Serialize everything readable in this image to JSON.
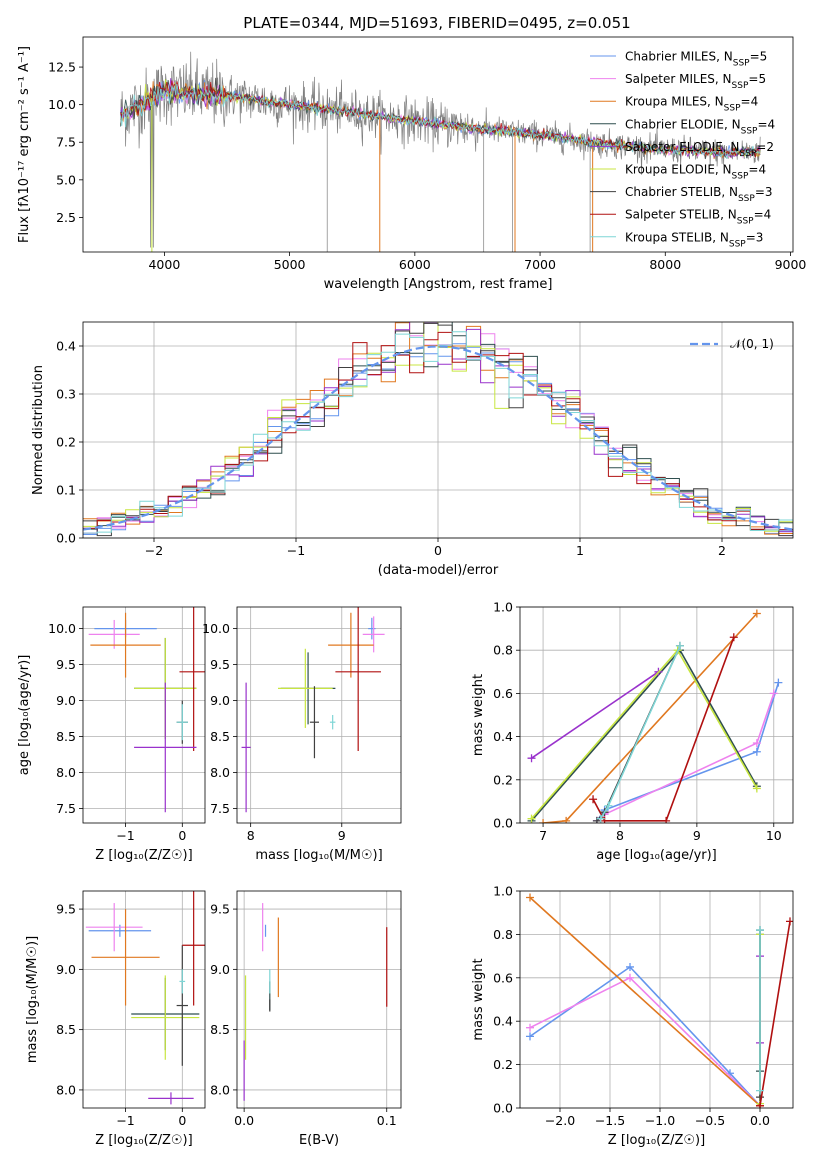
{
  "title": "PLATE=0344, MJD=51693, FIBERID=0495, z=0.051",
  "colors": {
    "Chabrier MILES": "#6495ed",
    "Salpeter MILES": "#ee82ee",
    "Kroupa MILES": "#e07820",
    "Chabrier ELODIE": "#2f4f4f",
    "Salpeter ELODIE": "#9932cc",
    "Kroupa ELODIE": "#c8e640",
    "Chabrier STELIB": "#404040",
    "Salpeter STELIB": "#b01010",
    "Kroupa STELIB": "#7fd6d6",
    "data": "#7f7f7f",
    "gaussian": "#6495ed"
  },
  "chart_data": [
    {
      "id": "spectrum",
      "type": "line",
      "xlabel": "wavelength [Angstrom, rest frame]",
      "ylabel": "Flux [f$_\\lambda$10$^{-17}$ erg cm$^{-2}$ s$^{-1}$ A$^{-1}$]",
      "ylabel_text": "Flux [fλ10⁻¹⁷ erg cm⁻² s⁻¹ A⁻¹]",
      "xlim": [
        3350,
        9020
      ],
      "ylim": [
        0.2,
        14.5
      ],
      "xticks": [
        4000,
        5000,
        6000,
        7000,
        8000,
        9000
      ],
      "xticklabels": [
        "4000",
        "5000",
        "6000",
        "7000",
        "8000",
        "9000"
      ],
      "yticks": [
        2.5,
        5.0,
        7.5,
        10.0,
        12.5
      ],
      "yticklabels": [
        "2.5",
        "5.0",
        "7.5",
        "10.0",
        "12.5"
      ],
      "legend_position": "upper right",
      "legend": [
        {
          "name": "Chabrier MILES",
          "nssp": "5"
        },
        {
          "name": "Salpeter MILES",
          "nssp": "5"
        },
        {
          "name": "Kroupa MILES",
          "nssp": "4"
        },
        {
          "name": "Chabrier ELODIE",
          "nssp": "4"
        },
        {
          "name": "Salpeter ELODIE",
          "nssp": "2"
        },
        {
          "name": "Kroupa ELODIE",
          "nssp": "4"
        },
        {
          "name": "Chabrier STELIB",
          "nssp": "3"
        },
        {
          "name": "Salpeter STELIB",
          "nssp": "4"
        },
        {
          "name": "Kroupa STELIB",
          "nssp": "3"
        }
      ],
      "data_trend": {
        "wavelength": [
          3650,
          4000,
          4500,
          5000,
          5500,
          6000,
          6500,
          7000,
          7500,
          8000,
          8500,
          8750
        ],
        "flux": [
          9.3,
          10.9,
          10.6,
          10.0,
          9.5,
          8.9,
          8.4,
          8.0,
          7.4,
          7.0,
          6.8,
          6.9
        ]
      }
    },
    {
      "id": "residuals",
      "type": "bar",
      "xlabel": "(data-model)/error",
      "ylabel": "Normed distribution",
      "xlim": [
        -2.5,
        2.5
      ],
      "ylim": [
        0,
        0.45
      ],
      "xticks": [
        -2,
        -1,
        0,
        1,
        2
      ],
      "xticklabels": [
        "−2",
        "−1",
        "0",
        "1",
        "2"
      ],
      "yticks": [
        0.0,
        0.1,
        0.2,
        0.3,
        0.4
      ],
      "yticklabels": [
        "0.0",
        "0.1",
        "0.2",
        "0.3",
        "0.4"
      ],
      "legend_label": "𝒩(0, 1)",
      "legend_position": "upper right",
      "bin_width": 0.1
    },
    {
      "id": "age_vs_Z",
      "type": "scatter",
      "xlabel": "Z [log₁₀(Z/Z☉)]",
      "ylabel": "age  [log₁₀(age/yr)]",
      "xlim": [
        -1.75,
        0.4
      ],
      "ylim": [
        7.3,
        10.3
      ],
      "xticks": [
        -1,
        0
      ],
      "xticklabels": [
        "−1",
        "0"
      ],
      "yticks": [
        7.5,
        8.0,
        8.5,
        9.0,
        9.5,
        10.0
      ],
      "yticklabels": [
        "7.5",
        "8.0",
        "8.5",
        "9.0",
        "9.5",
        "10.0"
      ],
      "points": [
        {
          "model": "Chabrier MILES",
          "x": -1.0,
          "xerr": 0.55,
          "y": 10.0,
          "yerr": 0.12
        },
        {
          "model": "Salpeter MILES",
          "x": -1.2,
          "xerr": 0.45,
          "y": 9.92,
          "yerr": 0.2
        },
        {
          "model": "Kroupa MILES",
          "x": -1.0,
          "xerr": 0.62,
          "y": 9.77,
          "yerr": 0.45
        },
        {
          "model": "Chabrier ELODIE",
          "x": -0.3,
          "xerr": 0.55,
          "y": 9.17,
          "yerr": 0.7
        },
        {
          "model": "Kroupa ELODIE",
          "x": -0.3,
          "xerr": 0.55,
          "y": 9.17,
          "yerr": 0.7
        },
        {
          "model": "Chabrier STELIB",
          "x": 0.0,
          "xerr": 0.1,
          "y": 8.7,
          "yerr": 0.3
        },
        {
          "model": "Kroupa STELIB",
          "x": 0.0,
          "xerr": 0.1,
          "y": 8.7,
          "yerr": 0.25
        },
        {
          "model": "Salpeter STELIB",
          "x": 0.2,
          "xerr": 0.25,
          "y": 9.4,
          "yerr": 1.1
        },
        {
          "model": "Salpeter ELODIE",
          "x": -0.3,
          "xerr": 0.55,
          "y": 8.35,
          "yerr": 0.9
        }
      ]
    },
    {
      "id": "age_vs_mass",
      "type": "scatter",
      "xlabel": "mass [log₁₀(M/M☉)]",
      "xlim": [
        7.85,
        9.65
      ],
      "ylim": [
        7.3,
        10.3
      ],
      "xticks": [
        8,
        9
      ],
      "xticklabels": [
        "8",
        "9"
      ],
      "yticks": [
        7.5,
        8.0,
        8.5,
        9.0,
        9.5,
        10.0
      ],
      "yticklabels": [
        "7.5",
        "8.0",
        "8.5",
        "9.0",
        "9.5",
        "10.0"
      ],
      "points": [
        {
          "model": "Chabrier MILES",
          "x": 9.33,
          "xerr": 0.04,
          "y": 10.0,
          "yerr": 0.15
        },
        {
          "model": "Salpeter MILES",
          "x": 9.35,
          "xerr": 0.12,
          "y": 9.92,
          "yerr": 0.25
        },
        {
          "model": "Kroupa MILES",
          "x": 9.1,
          "xerr": 0.25,
          "y": 9.77,
          "yerr": 0.45
        },
        {
          "model": "Chabrier ELODIE",
          "x": 8.63,
          "xerr": 0.3,
          "y": 9.17,
          "yerr": 0.5
        },
        {
          "model": "Kroupa ELODIE",
          "x": 8.6,
          "xerr": 0.3,
          "y": 9.17,
          "yerr": 0.55
        },
        {
          "model": "Chabrier STELIB",
          "x": 8.7,
          "xerr": 0.05,
          "y": 8.7,
          "yerr": 0.5
        },
        {
          "model": "Kroupa STELIB",
          "x": 8.9,
          "xerr": 0.03,
          "y": 8.7,
          "yerr": 0.1
        },
        {
          "model": "Salpeter STELIB",
          "x": 9.18,
          "xerr": 0.25,
          "y": 9.4,
          "yerr": 1.1
        },
        {
          "model": "Salpeter ELODIE",
          "x": 7.95,
          "xerr": 0.05,
          "y": 8.35,
          "yerr": 0.9
        }
      ]
    },
    {
      "id": "weight_vs_age",
      "type": "line",
      "xlabel": "age  [log₁₀(age/yr)]",
      "ylabel": "mass weight",
      "xlim": [
        6.7,
        10.25
      ],
      "ylim": [
        0,
        1
      ],
      "xticks": [
        7,
        8,
        9,
        10
      ],
      "xticklabels": [
        "7",
        "8",
        "9",
        "10"
      ],
      "yticks": [
        0.0,
        0.2,
        0.4,
        0.6,
        0.8,
        1.0
      ],
      "yticklabels": [
        "0.0",
        "0.2",
        "0.4",
        "0.6",
        "0.8",
        "1.0"
      ],
      "series": [
        {
          "model": "Chabrier MILES",
          "x": [
            7.7,
            7.8,
            9.78,
            10.06
          ],
          "y": [
            0.01,
            0.06,
            0.33,
            0.65
          ]
        },
        {
          "model": "Salpeter MILES",
          "x": [
            7.7,
            7.8,
            9.78,
            10.0
          ],
          "y": [
            0.01,
            0.04,
            0.37,
            0.6
          ]
        },
        {
          "model": "Kroupa MILES",
          "x": [
            7.0,
            7.3,
            9.78
          ],
          "y": [
            0.0,
            0.01,
            0.97
          ]
        },
        {
          "model": "Chabrier ELODIE",
          "x": [
            6.85,
            8.78,
            9.78
          ],
          "y": [
            0.01,
            0.8,
            0.17
          ]
        },
        {
          "model": "Salpeter ELODIE",
          "x": [
            6.85,
            8.5
          ],
          "y": [
            0.3,
            0.7
          ]
        },
        {
          "model": "Kroupa ELODIE",
          "x": [
            6.85,
            8.75,
            9.78
          ],
          "y": [
            0.02,
            0.8,
            0.16
          ]
        },
        {
          "model": "Chabrier STELIB",
          "x": [
            7.7,
            7.8,
            8.78
          ],
          "y": [
            0.01,
            0.05,
            0.82
          ]
        },
        {
          "model": "Salpeter STELIB",
          "x": [
            7.65,
            7.8,
            8.6,
            9.48
          ],
          "y": [
            0.11,
            0.01,
            0.01,
            0.86
          ]
        },
        {
          "model": "Kroupa STELIB",
          "x": [
            7.75,
            7.85,
            8.78
          ],
          "y": [
            0.02,
            0.08,
            0.82
          ]
        }
      ]
    },
    {
      "id": "mass_vs_Z",
      "type": "scatter",
      "xlabel": "Z [log₁₀(Z/Z☉)]",
      "ylabel": "mass [log₁₀(M/M☉)]",
      "xlim": [
        -1.75,
        0.4
      ],
      "ylim": [
        7.85,
        9.65
      ],
      "xticks": [
        -1,
        0
      ],
      "xticklabels": [
        "−1",
        "0"
      ],
      "yticks": [
        8.0,
        8.5,
        9.0,
        9.5
      ],
      "yticklabels": [
        "8.0",
        "8.5",
        "9.0",
        "9.5"
      ],
      "points": [
        {
          "model": "Chabrier MILES",
          "x": -1.1,
          "xerr": 0.55,
          "y": 9.32,
          "yerr": 0.05
        },
        {
          "model": "Salpeter MILES",
          "x": -1.2,
          "xerr": 0.5,
          "y": 9.35,
          "yerr": 0.2
        },
        {
          "model": "Kroupa MILES",
          "x": -1.0,
          "xerr": 0.6,
          "y": 9.1,
          "yerr": 0.4
        },
        {
          "model": "Chabrier ELODIE",
          "x": -0.3,
          "xerr": 0.6,
          "y": 8.63,
          "yerr": 0.3
        },
        {
          "model": "Kroupa ELODIE",
          "x": -0.3,
          "xerr": 0.6,
          "y": 8.6,
          "yerr": 0.35
        },
        {
          "model": "Chabrier STELIB",
          "x": 0.0,
          "xerr": 0.1,
          "y": 8.7,
          "yerr": 0.5
        },
        {
          "model": "Kroupa STELIB",
          "x": 0.0,
          "xerr": 0.05,
          "y": 8.9,
          "yerr": 0.1
        },
        {
          "model": "Salpeter STELIB",
          "x": 0.2,
          "xerr": 0.2,
          "y": 9.2,
          "yerr": 0.5
        },
        {
          "model": "Salpeter ELODIE",
          "x": -0.2,
          "xerr": 0.4,
          "y": 7.93,
          "yerr": 0.05
        }
      ]
    },
    {
      "id": "mass_vs_ebv",
      "type": "scatter",
      "xlabel": "E(B-V)",
      "xlim": [
        -0.005,
        0.11
      ],
      "ylim": [
        7.85,
        9.65
      ],
      "xticks": [
        0.0,
        0.1
      ],
      "xticklabels": [
        "0.0",
        "0.1"
      ],
      "yticks": [
        8.0,
        8.5,
        9.0,
        9.5
      ],
      "yticklabels": [
        "8.0",
        "8.5",
        "9.0",
        "9.5"
      ],
      "points": [
        {
          "model": "Chabrier MILES",
          "x": 0.015,
          "xerr": 0.0,
          "y": 9.32,
          "yerr": 0.05
        },
        {
          "model": "Salpeter MILES",
          "x": 0.013,
          "xerr": 0.0,
          "y": 9.35,
          "yerr": 0.2
        },
        {
          "model": "Kroupa MILES",
          "x": 0.024,
          "xerr": 0.0,
          "y": 9.1,
          "yerr": 0.33
        },
        {
          "model": "Chabrier ELODIE",
          "x": 0.018,
          "xerr": 0.0,
          "y": 8.78,
          "yerr": 0.12
        },
        {
          "model": "Kroupa ELODIE",
          "x": 0.001,
          "xerr": 0.0,
          "y": 8.6,
          "yerr": 0.35
        },
        {
          "model": "Chabrier STELIB",
          "x": 0.018,
          "xerr": 0.0,
          "y": 8.7,
          "yerr": 0.05
        },
        {
          "model": "Kroupa STELIB",
          "x": 0.018,
          "xerr": 0.0,
          "y": 8.9,
          "yerr": 0.1
        },
        {
          "model": "Salpeter STELIB",
          "x": 0.1,
          "xerr": 0.0,
          "y": 9.02,
          "yerr": 0.33
        },
        {
          "model": "Salpeter ELODIE",
          "x": 0.0,
          "xerr": 0.0,
          "y": 8.16,
          "yerr": 0.25
        }
      ]
    },
    {
      "id": "weight_vs_Z",
      "type": "line",
      "xlabel": "Z [log₁₀(Z/Z☉)]",
      "ylabel": "mass weight",
      "xlim": [
        -2.4,
        0.33
      ],
      "ylim": [
        0,
        1
      ],
      "xticks": [
        -2.0,
        -1.5,
        -1.0,
        -0.5,
        0.0
      ],
      "xticklabels": [
        "−2.0",
        "−1.5",
        "−1.0",
        "−0.5",
        "0.0"
      ],
      "yticks": [
        0.0,
        0.2,
        0.4,
        0.6,
        0.8,
        1.0
      ],
      "yticklabels": [
        "0.0",
        "0.2",
        "0.4",
        "0.6",
        "0.8",
        "1.0"
      ],
      "series": [
        {
          "model": "Chabrier MILES",
          "x": [
            -2.3,
            -1.3,
            -0.3,
            0.0
          ],
          "y": [
            0.33,
            0.65,
            0.16,
            0.01
          ]
        },
        {
          "model": "Salpeter MILES",
          "x": [
            -2.3,
            -1.3,
            0.0
          ],
          "y": [
            0.37,
            0.6,
            0.01
          ]
        },
        {
          "model": "Kroupa MILES",
          "x": [
            -2.3,
            0.0
          ],
          "y": [
            0.97,
            0.01
          ]
        },
        {
          "model": "Chabrier ELODIE",
          "x": [
            0.0,
            0.0
          ],
          "y": [
            0.17,
            0.8
          ]
        },
        {
          "model": "Salpeter ELODIE",
          "x": [
            0.0,
            0.0
          ],
          "y": [
            0.3,
            0.7
          ]
        },
        {
          "model": "Kroupa ELODIE",
          "x": [
            0.0,
            0.0
          ],
          "y": [
            0.02,
            0.8
          ]
        },
        {
          "model": "Chabrier STELIB",
          "x": [
            0.0,
            0.0
          ],
          "y": [
            0.05,
            0.82
          ]
        },
        {
          "model": "Salpeter STELIB",
          "x": [
            0.0,
            0.3
          ],
          "y": [
            0.01,
            0.86
          ]
        },
        {
          "model": "Kroupa STELIB",
          "x": [
            0.0,
            0.0
          ],
          "y": [
            0.08,
            0.82
          ]
        }
      ]
    }
  ]
}
